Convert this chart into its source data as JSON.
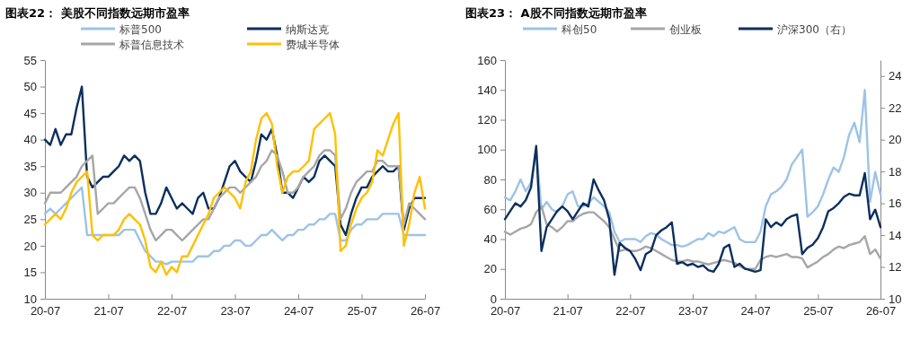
{
  "chart_data": [
    {
      "type": "line",
      "title": "图表22： 美股不同指数远期市盈率",
      "categories": [
        "20-07",
        null,
        null,
        null,
        null,
        null,
        null,
        null,
        null,
        null,
        null,
        null,
        "21-07",
        null,
        null,
        null,
        null,
        null,
        null,
        null,
        null,
        null,
        null,
        null,
        "22-07",
        null,
        null,
        null,
        null,
        null,
        null,
        null,
        null,
        null,
        null,
        null,
        "23-07",
        null,
        null,
        null,
        null,
        null,
        null,
        null,
        null,
        null,
        null,
        null,
        "24-07",
        null,
        null,
        null,
        null,
        null,
        null,
        null,
        null,
        null,
        null,
        null,
        "25-07",
        null,
        null,
        null,
        null,
        null,
        null,
        null,
        null,
        null,
        null,
        null,
        "26-07"
      ],
      "ylim": [
        10,
        55
      ],
      "yticks": [
        10,
        15,
        20,
        25,
        30,
        35,
        40,
        45,
        50,
        55
      ],
      "legend": "top",
      "grid": false,
      "marker": "none",
      "line_style": "solid",
      "series": [
        {
          "name": "标普500",
          "color": "#9dc3e6",
          "values": [
            26,
            27,
            26,
            27,
            28,
            29,
            30,
            31,
            22,
            22,
            22,
            22,
            22,
            22,
            22,
            23,
            23,
            23,
            21,
            19,
            18,
            17,
            17,
            16.5,
            17,
            17,
            17,
            17,
            17,
            18,
            18,
            18,
            19,
            19,
            20,
            20,
            21,
            21,
            20,
            20,
            21,
            22,
            22,
            23,
            22,
            21,
            22,
            22,
            23,
            23,
            24,
            24,
            25,
            25,
            26,
            26,
            21,
            21,
            23,
            24,
            24,
            25,
            25,
            25,
            26,
            26,
            26,
            26,
            22,
            22,
            22,
            22,
            22
          ]
        },
        {
          "name": "纳斯达克",
          "color": "#0b2f5e",
          "values": [
            40,
            39,
            42,
            39,
            41,
            41,
            46,
            50,
            33,
            31,
            32,
            33,
            33,
            34,
            35,
            37,
            36,
            37,
            36,
            30,
            26,
            26,
            28,
            31,
            29,
            27,
            28,
            27,
            26,
            29,
            30,
            27,
            27,
            29,
            32,
            35,
            36,
            34,
            33,
            32,
            36,
            41,
            40,
            42,
            37,
            30,
            30,
            29,
            31,
            33,
            32,
            33,
            36,
            37,
            36,
            35,
            24,
            22,
            26,
            29,
            31,
            31,
            33,
            34,
            35,
            34,
            34,
            35,
            23,
            27,
            29,
            29,
            29
          ]
        },
        {
          "name": "标普信息技术",
          "color": "#a6a6a6",
          "values": [
            28,
            30,
            30,
            30,
            31,
            32,
            33,
            35,
            36,
            37,
            26,
            27,
            28,
            28,
            29,
            30,
            31,
            31,
            29,
            26,
            23,
            21,
            22,
            23,
            23,
            22,
            21,
            22,
            23,
            24,
            25,
            25,
            27,
            29,
            30,
            31,
            31,
            30,
            31,
            32,
            33,
            35,
            36,
            38,
            37,
            34,
            30,
            30,
            31,
            33,
            34,
            35,
            37,
            38,
            38,
            37,
            25,
            27,
            30,
            32,
            33,
            34,
            34,
            36,
            36,
            35,
            35,
            35,
            24,
            28,
            27,
            26,
            25
          ]
        },
        {
          "name": "费城半导体",
          "color": "#ffc000",
          "values": [
            24,
            25,
            26,
            25,
            27,
            30,
            32,
            33,
            34,
            22,
            21,
            22,
            22,
            22,
            23,
            25,
            26,
            25,
            24,
            21,
            16,
            15,
            17,
            14.5,
            16,
            15,
            18,
            18,
            20,
            22,
            24,
            26,
            29,
            30,
            31,
            30,
            29,
            27,
            32,
            34,
            40,
            44,
            45,
            43,
            35,
            30,
            33,
            34,
            34,
            35,
            36,
            42,
            43,
            44,
            45,
            41,
            19,
            20,
            24,
            27,
            29,
            30,
            32,
            38,
            37,
            40,
            43,
            45,
            20,
            24,
            30,
            33,
            27
          ]
        }
      ]
    },
    {
      "type": "line",
      "title": "图表23： A股不同指数远期市盈率",
      "categories": [
        "20-07",
        null,
        null,
        null,
        null,
        null,
        null,
        null,
        null,
        null,
        null,
        null,
        "21-07",
        null,
        null,
        null,
        null,
        null,
        null,
        null,
        null,
        null,
        null,
        null,
        "22-07",
        null,
        null,
        null,
        null,
        null,
        null,
        null,
        null,
        null,
        null,
        null,
        "23-07",
        null,
        null,
        null,
        null,
        null,
        null,
        null,
        null,
        null,
        null,
        null,
        "24-07",
        null,
        null,
        null,
        null,
        null,
        null,
        null,
        null,
        null,
        null,
        null,
        "25-07",
        null,
        null,
        null,
        null,
        null,
        null,
        null,
        null,
        null,
        null,
        null,
        "26-07"
      ],
      "ylim": [
        0,
        160
      ],
      "yticks": [
        0,
        20,
        40,
        60,
        80,
        100,
        120,
        140,
        160
      ],
      "y2lim": [
        10,
        25
      ],
      "y2ticks": [
        10,
        12,
        14,
        16,
        18,
        20,
        22,
        24
      ],
      "legend": "top",
      "grid": false,
      "marker": "none",
      "line_style": "solid",
      "series": [
        {
          "name": "科创50",
          "color": "#9dc3e6",
          "values": [
            68,
            66,
            72,
            80,
            72,
            78,
            100,
            60,
            65,
            60,
            58,
            62,
            70,
            72,
            62,
            62,
            64,
            68,
            65,
            62,
            58,
            45,
            38,
            40,
            40,
            40,
            38,
            42,
            44,
            43,
            40,
            38,
            36,
            36,
            35,
            36,
            38,
            40,
            40,
            44,
            42,
            45,
            44,
            46,
            48,
            40,
            38,
            38,
            38,
            45,
            62,
            70,
            72,
            75,
            80,
            90,
            95,
            100,
            55,
            58,
            62,
            70,
            80,
            88,
            85,
            95,
            110,
            118,
            105,
            140,
            65,
            85,
            70
          ]
        },
        {
          "name": "创业板",
          "color": "#a6a6a6",
          "values": [
            45,
            43,
            45,
            47,
            48,
            50,
            58,
            62,
            50,
            48,
            45,
            48,
            52,
            52,
            55,
            57,
            58,
            58,
            55,
            52,
            48,
            40,
            32,
            33,
            32,
            32,
            33,
            35,
            34,
            32,
            30,
            28,
            26,
            25,
            25,
            26,
            25,
            25,
            24,
            23,
            24,
            25,
            26,
            25,
            24,
            22,
            20,
            20,
            20,
            26,
            28,
            29,
            28,
            29,
            30,
            28,
            28,
            27,
            21,
            23,
            25,
            28,
            30,
            33,
            35,
            34,
            36,
            37,
            38,
            42,
            30,
            33,
            27
          ]
        },
        {
          "name": "沪深300（右）",
          "color": "#0b2f5e",
          "axis": "y2",
          "values": [
            15,
            15.5,
            16,
            15.8,
            16.2,
            17,
            19.6,
            13,
            14.5,
            15,
            15.5,
            15.8,
            15.5,
            15,
            15.5,
            16,
            15.8,
            17.5,
            16.8,
            16.2,
            15,
            11.5,
            13.5,
            13.2,
            13,
            12.5,
            11.8,
            12.8,
            13,
            14,
            14.3,
            14.5,
            14.8,
            12.2,
            12.3,
            12.1,
            12.2,
            12,
            12.1,
            11.8,
            11.7,
            12.2,
            13.2,
            13.4,
            12,
            12.2,
            11.9,
            11.8,
            11.7,
            11.8,
            15,
            14.5,
            14.8,
            14.6,
            15,
            15.2,
            15.3,
            12.8,
            13.2,
            13.4,
            13.8,
            14.5,
            15.5,
            15.7,
            16,
            16.4,
            16.6,
            16.5,
            16.5,
            17.9,
            15,
            15.6,
            14.5
          ]
        }
      ]
    }
  ]
}
